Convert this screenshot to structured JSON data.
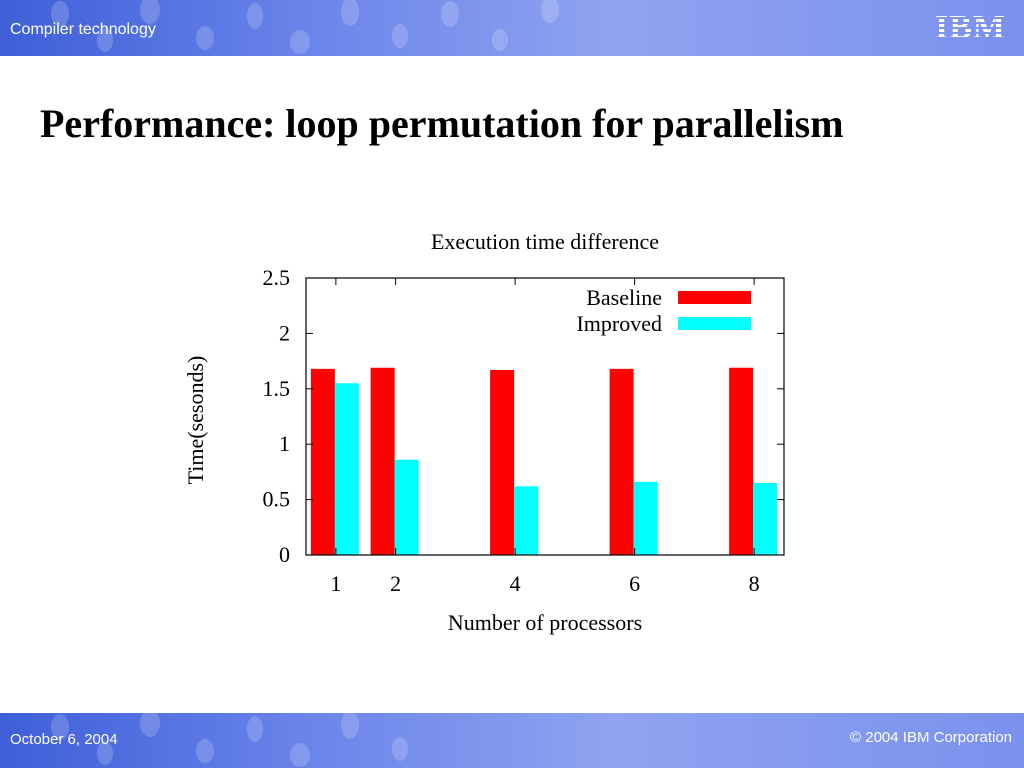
{
  "header": {
    "title": "Compiler technology",
    "logo_text": "IBM"
  },
  "slide": {
    "title": "Performance: loop permutation for parallelism"
  },
  "footer": {
    "date": "October 6, 2004",
    "copyright": "© 2004 IBM Corporation"
  },
  "colors": {
    "bar_gradient_start": "#3f5fd8",
    "bar_gradient_end": "#8fa3f0",
    "baseline": "#ff0000",
    "improved": "#00ffff"
  },
  "chart_data": {
    "type": "bar",
    "title": "Execution time difference",
    "xlabel": "Number of processors",
    "ylabel": "Time(sesonds)",
    "categories": [
      "1",
      "2",
      "4",
      "6",
      "8"
    ],
    "x": [
      1,
      2,
      4,
      6,
      8
    ],
    "ylim": [
      0,
      2.5
    ],
    "yticks": [
      0,
      0.5,
      1,
      1.5,
      2,
      2.5
    ],
    "ytick_labels": [
      "0",
      "0.5",
      "1",
      "1.5",
      "2",
      "2.5"
    ],
    "legend_position": "top-right",
    "grid": false,
    "series": [
      {
        "name": "Baseline",
        "color": "#ff0000",
        "values": [
          1.68,
          1.69,
          1.67,
          1.68,
          1.69
        ]
      },
      {
        "name": "Improved",
        "color": "#00ffff",
        "values": [
          1.55,
          0.86,
          0.62,
          0.66,
          0.65
        ]
      }
    ]
  }
}
